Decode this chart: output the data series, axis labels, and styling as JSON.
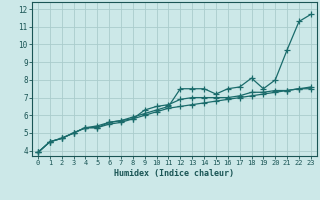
{
  "xlabel": "Humidex (Indice chaleur)",
  "xlim": [
    -0.5,
    23.5
  ],
  "ylim": [
    3.7,
    12.4
  ],
  "yticks": [
    4,
    5,
    6,
    7,
    8,
    9,
    10,
    11,
    12
  ],
  "xticks": [
    0,
    1,
    2,
    3,
    4,
    5,
    6,
    7,
    8,
    9,
    10,
    11,
    12,
    13,
    14,
    15,
    16,
    17,
    18,
    19,
    20,
    21,
    22,
    23
  ],
  "background_color": "#cce8e8",
  "grid_color": "#aacccc",
  "line_color": "#1a6b6b",
  "line1": [
    3.9,
    4.5,
    4.7,
    5.0,
    5.3,
    5.3,
    5.6,
    5.7,
    5.9,
    6.1,
    6.3,
    6.5,
    7.5,
    7.5,
    7.5,
    7.2,
    7.5,
    7.6,
    8.1,
    7.5,
    8.0,
    9.7,
    11.3,
    11.7
  ],
  "line2": [
    3.9,
    4.5,
    4.7,
    5.0,
    5.3,
    5.3,
    5.5,
    5.6,
    5.8,
    6.3,
    6.5,
    6.6,
    6.9,
    7.0,
    7.0,
    7.0,
    7.0,
    7.1,
    7.3,
    7.3,
    7.4,
    7.4,
    7.5,
    7.5
  ],
  "line3": [
    3.9,
    4.5,
    4.7,
    5.0,
    5.3,
    5.4,
    5.6,
    5.7,
    5.8,
    6.0,
    6.2,
    6.4,
    6.5,
    6.6,
    6.7,
    6.8,
    6.9,
    7.0,
    7.1,
    7.2,
    7.3,
    7.4,
    7.5,
    7.6
  ],
  "marker_size": 4.0,
  "line_width": 0.9
}
